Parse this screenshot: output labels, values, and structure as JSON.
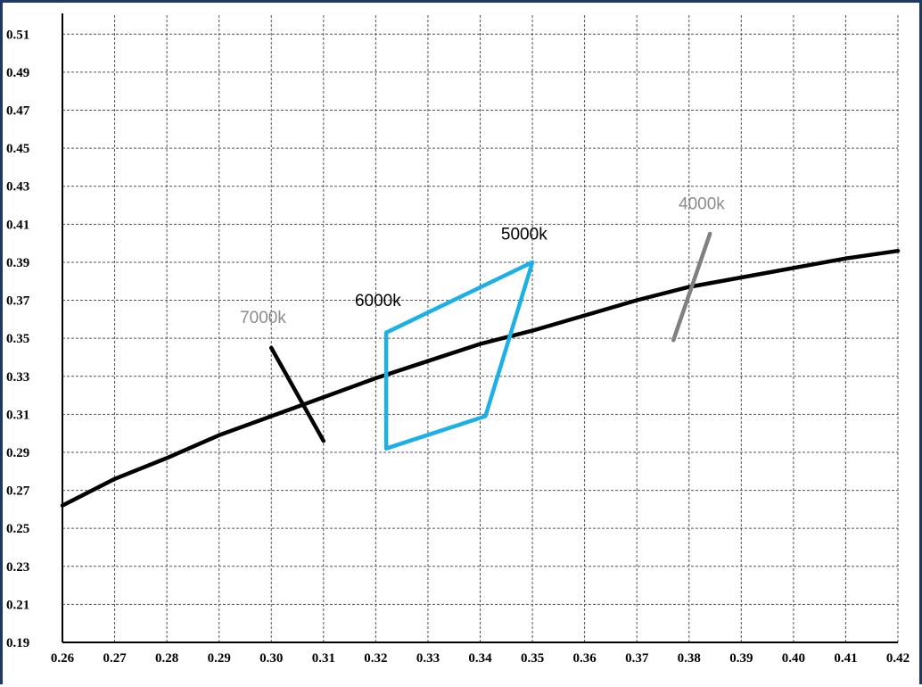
{
  "chart_data": {
    "type": "line",
    "title": "",
    "xlabel": "",
    "ylabel": "",
    "xlim": [
      0.26,
      0.42
    ],
    "ylim": [
      0.19,
      0.52
    ],
    "grid": true,
    "x_ticks": [
      "0.26",
      "0.27",
      "0.28",
      "0.29",
      "0.30",
      "0.31",
      "0.32",
      "0.33",
      "0.34",
      "0.35",
      "0.36",
      "0.37",
      "0.38",
      "0.39",
      "0.40",
      "0.41",
      "0.42"
    ],
    "y_ticks": [
      "0.19",
      "0.21",
      "0.23",
      "0.25",
      "0.27",
      "0.29",
      "0.31",
      "0.33",
      "0.35",
      "0.37",
      "0.39",
      "0.41",
      "0.43",
      "0.45",
      "0.47",
      "0.49",
      "0.51"
    ],
    "series": [
      {
        "color": "#000000",
        "style": "curve",
        "points": [
          [
            0.26,
            0.262
          ],
          [
            0.27,
            0.276
          ],
          [
            0.28,
            0.287
          ],
          [
            0.29,
            0.299
          ],
          [
            0.3,
            0.309
          ],
          [
            0.31,
            0.319
          ],
          [
            0.32,
            0.329
          ],
          [
            0.33,
            0.338
          ],
          [
            0.34,
            0.347
          ],
          [
            0.35,
            0.354
          ],
          [
            0.36,
            0.362
          ],
          [
            0.37,
            0.37
          ],
          [
            0.38,
            0.377
          ],
          [
            0.39,
            0.382
          ],
          [
            0.4,
            0.387
          ],
          [
            0.41,
            0.392
          ],
          [
            0.42,
            0.396
          ]
        ]
      },
      {
        "color": "#000000",
        "style": "segment",
        "points": [
          [
            0.3,
            0.345
          ],
          [
            0.31,
            0.296
          ]
        ]
      },
      {
        "color": "#1cb0e6",
        "style": "polygon",
        "points": [
          [
            0.322,
            0.353
          ],
          [
            0.35,
            0.39
          ],
          [
            0.341,
            0.309
          ],
          [
            0.322,
            0.292
          ]
        ]
      },
      {
        "color": "#808080",
        "style": "segment",
        "points": [
          [
            0.377,
            0.349
          ],
          [
            0.384,
            0.405
          ]
        ]
      }
    ],
    "annotations": [
      {
        "text": "7000k",
        "x": 0.294,
        "y": 0.358,
        "color": "#8c8c8c"
      },
      {
        "text": "6000k",
        "x": 0.316,
        "y": 0.367,
        "color": "#000000"
      },
      {
        "text": "5000k",
        "x": 0.344,
        "y": 0.402,
        "color": "#000000"
      },
      {
        "text": "4000k",
        "x": 0.378,
        "y": 0.418,
        "color": "#8c8c8c"
      }
    ]
  }
}
